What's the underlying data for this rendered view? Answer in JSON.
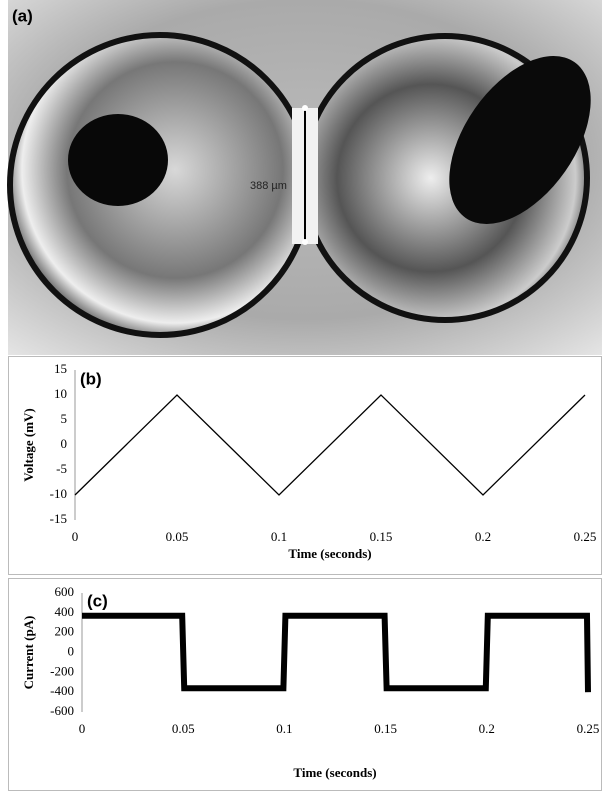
{
  "image": {
    "label": "(a)",
    "annotation": "388 µm"
  },
  "chart_data": [
    {
      "type": "line",
      "annotation": "(b)",
      "xlabel": "Time (seconds)",
      "ylabel": "Voltage (mV)",
      "x": [
        0,
        0.05,
        0.1,
        0.15,
        0.2,
        0.25
      ],
      "values": [
        -10,
        10,
        -10,
        10,
        -10,
        10
      ],
      "color": "#000000",
      "xlim": [
        0,
        0.25
      ],
      "xticks": [
        0,
        0.05,
        0.1,
        0.15,
        0.2,
        0.25
      ],
      "ylim": [
        -15,
        15
      ],
      "yticks": [
        -15,
        -10,
        -5,
        0,
        5,
        10,
        15
      ],
      "grid": false
    },
    {
      "type": "line",
      "annotation": "(c)",
      "xlabel": "Time (seconds)",
      "ylabel": "Current (pA)",
      "x": [
        0,
        0.0495,
        0.0505,
        0.0995,
        0.1005,
        0.1495,
        0.1505,
        0.1995,
        0.2005,
        0.2495,
        0.25
      ],
      "values": [
        370,
        370,
        -360,
        -360,
        370,
        370,
        -360,
        -360,
        370,
        370,
        -400
      ],
      "color": "#000000",
      "xlim": [
        0,
        0.25
      ],
      "xticks": [
        0,
        0.05,
        0.1,
        0.15,
        0.2,
        0.25
      ],
      "ylim": [
        -600,
        600
      ],
      "yticks": [
        -600,
        -400,
        -200,
        0,
        200,
        400,
        600
      ],
      "grid": false
    }
  ]
}
